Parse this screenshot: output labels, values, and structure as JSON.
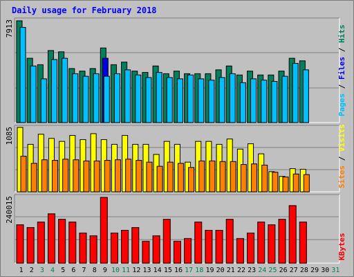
{
  "title": "Daily usage for February 2018",
  "colors": {
    "background": "#c0c0c0",
    "panel": "#c0c0c0",
    "title": "#0000ff",
    "hits": "#00805c",
    "files": "#0000ff",
    "pages": "#00c0ff",
    "visits": "#ffff00",
    "sites": "#ff8000",
    "kbytes": "#ff0000",
    "weekend_label": "#00805c",
    "weekday_label": "#000000",
    "highlight_files": "#0000e0"
  },
  "chart_data": [
    {
      "type": "bar",
      "title": "Daily usage for February 2018",
      "categories": [
        "1",
        "2",
        "3",
        "4",
        "5",
        "6",
        "7",
        "8",
        "9",
        "10",
        "11",
        "12",
        "13",
        "14",
        "15",
        "16",
        "17",
        "18",
        "19",
        "20",
        "21",
        "22",
        "23",
        "24",
        "25",
        "26",
        "27",
        "28",
        "29",
        "30",
        "31"
      ],
      "weekend_days": [
        "3",
        "4",
        "10",
        "11",
        "17",
        "18",
        "24",
        "25",
        "31"
      ],
      "ymax_label": "7913",
      "ymax": 7913,
      "axis_right_label": [
        "Pages",
        "Files",
        "Hits"
      ],
      "series": [
        {
          "name": "Hits",
          "values": [
            7913,
            5000,
            4500,
            5600,
            5500,
            4200,
            4000,
            4200,
            5800,
            4500,
            4700,
            4000,
            3900,
            4400,
            3800,
            4000,
            3800,
            3800,
            3800,
            4100,
            4400,
            3700,
            4000,
            3700,
            3700,
            4000,
            5000,
            4800,
            0,
            0,
            0
          ]
        },
        {
          "name": "Files",
          "values": [
            7500,
            4500,
            3900,
            5000,
            5000,
            3700,
            3600,
            3900,
            5000,
            4000,
            4100,
            3600,
            3500,
            3900,
            3400,
            3400,
            3600,
            3300,
            3300,
            3700,
            3900,
            3100,
            3400,
            3200,
            3200,
            3400,
            4400,
            4200,
            0,
            0,
            0
          ]
        },
        {
          "name": "Pages",
          "values": [
            7400,
            4400,
            3400,
            4900,
            5000,
            3800,
            3600,
            3800,
            3600,
            3800,
            4100,
            3700,
            3500,
            3900,
            3500,
            3400,
            3700,
            3400,
            3300,
            3500,
            3800,
            3100,
            3400,
            3300,
            3200,
            3600,
            4600,
            4100,
            0,
            0,
            0
          ]
        }
      ]
    },
    {
      "type": "bar",
      "ymax_label": "1085",
      "ymax": 1085,
      "axis_right_label": [
        "Sites",
        "Visits"
      ],
      "series": [
        {
          "name": "Visits",
          "values": [
            1085,
            800,
            970,
            900,
            850,
            950,
            880,
            980,
            880,
            800,
            950,
            800,
            800,
            630,
            850,
            800,
            500,
            850,
            850,
            800,
            890,
            720,
            810,
            640,
            340,
            260,
            390,
            380,
            0,
            0,
            0
          ]
        },
        {
          "name": "Sites",
          "values": [
            600,
            480,
            540,
            530,
            550,
            540,
            520,
            520,
            530,
            540,
            550,
            530,
            500,
            430,
            500,
            480,
            410,
            520,
            520,
            510,
            510,
            460,
            470,
            450,
            330,
            250,
            300,
            290,
            0,
            0,
            0
          ]
        }
      ]
    },
    {
      "type": "bar",
      "ymax_label": "240015",
      "ymax": 240015,
      "axis_right_label": [
        "KBytes"
      ],
      "series": [
        {
          "name": "KBytes",
          "values": [
            140000,
            130000,
            150000,
            180000,
            160000,
            150000,
            110000,
            100000,
            240015,
            110000,
            120000,
            130000,
            80000,
            100000,
            160000,
            80000,
            90000,
            150000,
            120000,
            120000,
            160000,
            90000,
            110000,
            150000,
            140000,
            160000,
            210000,
            150000,
            0,
            0,
            0
          ]
        }
      ]
    }
  ]
}
